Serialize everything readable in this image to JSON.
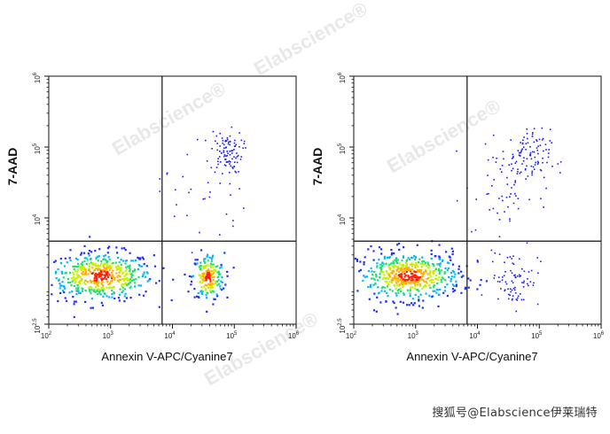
{
  "watermark": "Elabscience®",
  "credit": "搜狐号@Elabscience伊莱瑞特",
  "chart_data": [
    {
      "type": "scatter",
      "title": "",
      "xlabel": "Annexin V-APC/Cyanine7",
      "ylabel": "7-AAD",
      "xscale": "log",
      "yscale": "log",
      "xlim": [
        100,
        1000000
      ],
      "ylim": [
        316,
        1000000
      ],
      "x_ticks": [
        {
          "value": 100,
          "base": "10",
          "exp": "2"
        },
        {
          "value": 1000,
          "base": "10",
          "exp": "3"
        },
        {
          "value": 10000,
          "base": "10",
          "exp": "4"
        },
        {
          "value": 100000,
          "base": "10",
          "exp": "5"
        },
        {
          "value": 1000000,
          "base": "10",
          "exp": "6"
        }
      ],
      "y_ticks": [
        {
          "value": 316,
          "base": "10",
          "exp": "2.5"
        },
        {
          "value": 10000,
          "base": "10",
          "exp": "4"
        },
        {
          "value": 100000,
          "base": "10",
          "exp": "5"
        },
        {
          "value": 1000000,
          "base": "10",
          "exp": "6"
        }
      ],
      "gate": {
        "x": 6800,
        "y": 4700
      },
      "populations": [
        {
          "name": "live",
          "center": [
            700,
            1500
          ],
          "spread": [
            0.42,
            0.17
          ],
          "count": 520,
          "dense": true
        },
        {
          "name": "early-apoptotic",
          "center": [
            38000,
            1450
          ],
          "spread": [
            0.13,
            0.17
          ],
          "count": 190,
          "dense": true
        },
        {
          "name": "late-apoptotic",
          "center": [
            75000,
            85000
          ],
          "spread": [
            0.13,
            0.15
          ],
          "count": 90,
          "dense": false
        },
        {
          "name": "scattered",
          "center": [
            30000,
            25000
          ],
          "spread": [
            0.35,
            0.4
          ],
          "count": 35,
          "dense": false
        }
      ]
    },
    {
      "type": "scatter",
      "title": "",
      "xlabel": "Annexin V-APC/Cyanine7",
      "ylabel": "7-AAD",
      "xscale": "log",
      "yscale": "log",
      "xlim": [
        100,
        1000000
      ],
      "ylim": [
        316,
        1000000
      ],
      "x_ticks": [
        {
          "value": 100,
          "base": "10",
          "exp": "2"
        },
        {
          "value": 1000,
          "base": "10",
          "exp": "3"
        },
        {
          "value": 10000,
          "base": "10",
          "exp": "4"
        },
        {
          "value": 100000,
          "base": "10",
          "exp": "5"
        },
        {
          "value": 1000000,
          "base": "10",
          "exp": "6"
        }
      ],
      "y_ticks": [
        {
          "value": 316,
          "base": "10",
          "exp": "2.5"
        },
        {
          "value": 10000,
          "base": "10",
          "exp": "4"
        },
        {
          "value": 100000,
          "base": "10",
          "exp": "5"
        },
        {
          "value": 1000000,
          "base": "10",
          "exp": "6"
        }
      ],
      "gate": {
        "x": 6800,
        "y": 4700
      },
      "populations": [
        {
          "name": "live",
          "center": [
            800,
            1500
          ],
          "spread": [
            0.42,
            0.17
          ],
          "count": 560,
          "dense": true
        },
        {
          "name": "early-apoptotic",
          "center": [
            40000,
            1400
          ],
          "spread": [
            0.2,
            0.2
          ],
          "count": 80,
          "dense": false
        },
        {
          "name": "late-apoptotic",
          "center": [
            60000,
            70000
          ],
          "spread": [
            0.2,
            0.2
          ],
          "count": 110,
          "dense": false
        },
        {
          "name": "scattered",
          "center": [
            25000,
            20000
          ],
          "spread": [
            0.3,
            0.35
          ],
          "count": 45,
          "dense": false
        }
      ]
    }
  ]
}
